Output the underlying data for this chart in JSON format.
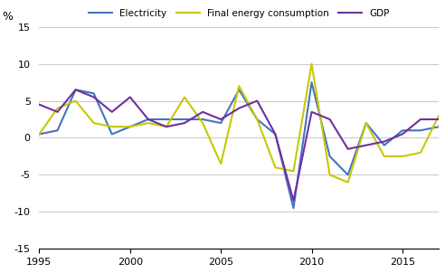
{
  "years": [
    1995,
    1996,
    1997,
    1998,
    1999,
    2000,
    2001,
    2002,
    2003,
    2004,
    2005,
    2006,
    2007,
    2008,
    2009,
    2010,
    2011,
    2012,
    2013,
    2014,
    2015,
    2016,
    2017
  ],
  "electricity": [
    0.5,
    1.0,
    6.5,
    6.0,
    0.5,
    1.5,
    2.5,
    2.5,
    2.5,
    2.5,
    2.0,
    6.5,
    2.5,
    0.5,
    -9.5,
    7.5,
    -2.5,
    -5.0,
    2.0,
    -1.0,
    1.0,
    1.0,
    1.5
  ],
  "final_energy": [
    0.5,
    4.0,
    5.0,
    2.0,
    1.5,
    1.5,
    2.0,
    1.5,
    5.5,
    2.0,
    -3.5,
    7.0,
    2.5,
    -4.0,
    -4.5,
    10.0,
    -5.0,
    -6.0,
    2.0,
    -2.5,
    -2.5,
    -2.0,
    3.0
  ],
  "gdp": [
    4.5,
    3.5,
    6.5,
    5.5,
    3.5,
    5.5,
    2.5,
    1.5,
    2.0,
    3.5,
    2.5,
    4.0,
    5.0,
    0.5,
    -8.5,
    3.5,
    2.5,
    -1.5,
    -1.0,
    -0.5,
    0.5,
    2.5,
    2.5
  ],
  "electricity_color": "#4472c4",
  "final_energy_color": "#c8c800",
  "gdp_color": "#7030a0",
  "ylim": [
    -15,
    15
  ],
  "yticks": [
    -15,
    -10,
    -5,
    0,
    5,
    10,
    15
  ],
  "ylabel": "%",
  "grid_color": "#cccccc",
  "line_width": 1.5
}
